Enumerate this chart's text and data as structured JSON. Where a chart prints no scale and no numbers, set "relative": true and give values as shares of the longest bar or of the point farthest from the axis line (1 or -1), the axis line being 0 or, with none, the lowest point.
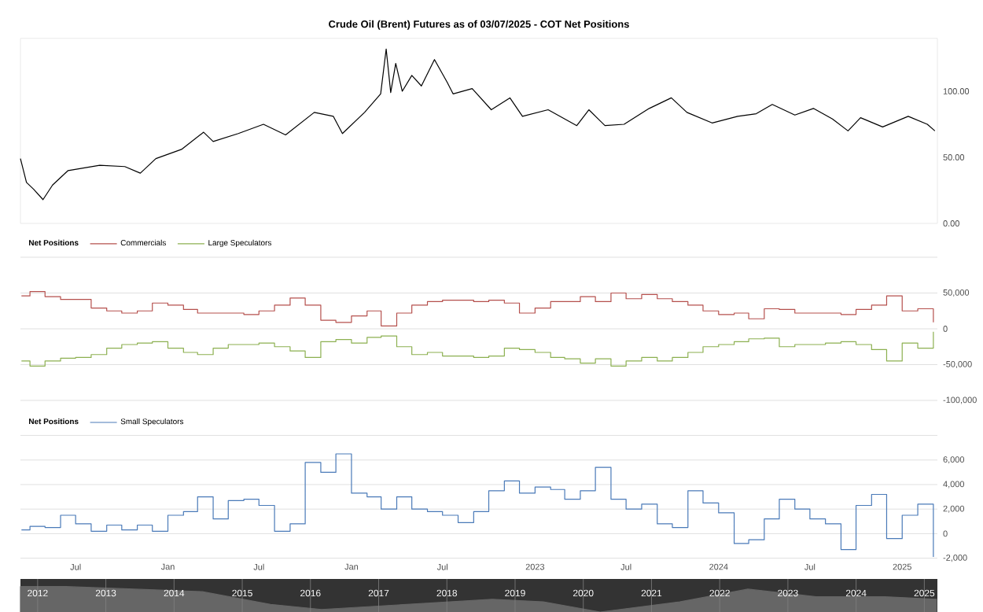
{
  "chart_data": [
    {
      "type": "line",
      "title": "Crude Oil (Brent) Futures as of 03/07/2025 - COT Net Positions",
      "x": [
        "2020-03-13",
        "2020-03-25",
        "2020-04-08",
        "2020-04-27",
        "2020-05-16",
        "2020-06-16",
        "2020-08-18",
        "2020-10-07",
        "2020-11-07",
        "2020-12-08",
        "2021-01-28",
        "2021-03-13",
        "2021-04-01",
        "2021-05-21",
        "2021-07-10",
        "2021-08-23",
        "2021-10-19",
        "2021-11-26",
        "2021-12-14",
        "2022-01-27",
        "2022-02-28",
        "2022-03-11",
        "2022-03-20",
        "2022-03-30",
        "2022-04-12",
        "2022-05-01",
        "2022-05-20",
        "2022-06-15",
        "2022-07-10",
        "2022-07-22",
        "2022-08-29",
        "2022-10-06",
        "2022-11-12",
        "2022-12-07",
        "2023-01-27",
        "2023-03-25",
        "2023-04-18",
        "2023-05-20",
        "2023-06-27",
        "2023-08-16",
        "2023-09-29",
        "2023-10-30",
        "2023-12-19",
        "2024-02-08",
        "2024-03-16",
        "2024-04-17",
        "2024-06-01",
        "2024-07-08",
        "2024-08-15",
        "2024-09-15",
        "2024-10-10",
        "2024-11-23",
        "2025-01-13",
        "2025-02-20",
        "2025-03-07"
      ],
      "series": [
        {
          "color": "#000000",
          "values": [
            49,
            31,
            26,
            18,
            29,
            40,
            44,
            43,
            38,
            49,
            56,
            69,
            62,
            68,
            75,
            67,
            84,
            81,
            68,
            84,
            98,
            132,
            99,
            121,
            100,
            112,
            104,
            124,
            107,
            98,
            102,
            86,
            95,
            81,
            86,
            74,
            86,
            74,
            75,
            87,
            95,
            84,
            76,
            81,
            83,
            90,
            82,
            87,
            79,
            70,
            80,
            73,
            81,
            75,
            70
          ]
        }
      ],
      "xlim": [
        "2020-03-13",
        "2025-03-12"
      ],
      "ylim": [
        0,
        140
      ],
      "yticks": [
        {
          "value": 0,
          "label": "0.00"
        },
        {
          "value": 50,
          "label": "50.00"
        },
        {
          "value": 100,
          "label": "100.00"
        }
      ],
      "tick_labels": "y"
    },
    {
      "type": "step",
      "legend_title": "Net Positions",
      "legend": "top left",
      "grid": "y",
      "x": [
        "2020-03-15",
        "2020-04-01",
        "2020-05-01",
        "2020-06-01",
        "2020-07-01",
        "2020-08-01",
        "2020-09-01",
        "2020-10-01",
        "2020-11-01",
        "2020-12-01",
        "2021-01-01",
        "2021-02-01",
        "2021-03-01",
        "2021-04-01",
        "2021-05-01",
        "2021-06-01",
        "2021-07-01",
        "2021-08-01",
        "2021-09-01",
        "2021-10-01",
        "2021-11-01",
        "2021-12-01",
        "2022-01-01",
        "2022-02-01",
        "2022-03-01",
        "2022-04-01",
        "2022-05-01",
        "2022-06-01",
        "2022-07-01",
        "2022-08-01",
        "2022-09-01",
        "2022-10-01",
        "2022-11-01",
        "2022-12-01",
        "2023-01-01",
        "2023-02-01",
        "2023-03-01",
        "2023-04-01",
        "2023-05-01",
        "2023-06-01",
        "2023-07-01",
        "2023-08-01",
        "2023-09-01",
        "2023-10-01",
        "2023-11-01",
        "2023-12-01",
        "2024-01-01",
        "2024-02-01",
        "2024-03-01",
        "2024-04-01",
        "2024-05-01",
        "2024-06-01",
        "2024-07-01",
        "2024-08-01",
        "2024-09-01",
        "2024-10-01",
        "2024-11-01",
        "2024-12-01",
        "2025-01-01",
        "2025-02-01",
        "2025-03-04"
      ],
      "series": [
        {
          "name": "Commercials",
          "color": "#b5504d",
          "values": [
            46000,
            52000,
            45000,
            41000,
            41000,
            29000,
            25000,
            22000,
            25000,
            36000,
            33000,
            27000,
            22000,
            22000,
            22000,
            20000,
            25000,
            33000,
            43000,
            33000,
            12000,
            9000,
            18000,
            25000,
            4000,
            22000,
            33000,
            38000,
            40000,
            40000,
            38000,
            40000,
            36000,
            22000,
            29000,
            38000,
            38000,
            45000,
            38000,
            50000,
            42000,
            48000,
            42000,
            38000,
            33000,
            25000,
            20000,
            22000,
            14000,
            28000,
            27000,
            22000,
            22000,
            22000,
            20000,
            27000,
            33000,
            46000,
            25000,
            28000,
            9000
          ]
        },
        {
          "name": "Large Speculators",
          "color": "#8cb050",
          "values": [
            -45000,
            -52000,
            -45000,
            -41000,
            -40000,
            -36000,
            -27000,
            -22000,
            -20000,
            -18000,
            -27000,
            -33000,
            -36000,
            -27000,
            -22000,
            -22000,
            -20000,
            -25000,
            -31000,
            -40000,
            -18000,
            -15000,
            -20000,
            -12000,
            -10000,
            -25000,
            -36000,
            -33000,
            -38000,
            -38000,
            -40000,
            -38000,
            -27000,
            -29000,
            -33000,
            -40000,
            -42000,
            -48000,
            -42000,
            -52000,
            -45000,
            -40000,
            -45000,
            -40000,
            -33000,
            -25000,
            -22000,
            -18000,
            -14000,
            -13000,
            -25000,
            -22000,
            -22000,
            -20000,
            -18000,
            -22000,
            -29000,
            -45000,
            -20000,
            -27000,
            -4000
          ]
        }
      ],
      "xlim": [
        "2020-03-13",
        "2025-03-12"
      ],
      "ylim": [
        -100000,
        100000
      ],
      "yticks": [
        {
          "value": -100000,
          "label": "-100,000"
        },
        {
          "value": -50000,
          "label": "-50,000"
        },
        0,
        {
          "value": 50000,
          "label": "50,000"
        },
        {
          "value": 100000,
          "label": null
        }
      ],
      "tick_labels": "y"
    },
    {
      "type": "step",
      "legend_title": "Net Positions",
      "legend": "top left",
      "grid": "y",
      "x": [
        "2020-03-15",
        "2020-04-01",
        "2020-05-01",
        "2020-06-01",
        "2020-07-01",
        "2020-08-01",
        "2020-09-01",
        "2020-10-01",
        "2020-11-01",
        "2020-12-01",
        "2021-01-01",
        "2021-02-01",
        "2021-03-01",
        "2021-04-01",
        "2021-05-01",
        "2021-06-01",
        "2021-07-01",
        "2021-08-01",
        "2021-09-01",
        "2021-10-01",
        "2021-11-01",
        "2021-12-01",
        "2022-01-01",
        "2022-02-01",
        "2022-03-01",
        "2022-04-01",
        "2022-05-01",
        "2022-06-01",
        "2022-07-01",
        "2022-08-01",
        "2022-09-01",
        "2022-10-01",
        "2022-11-01",
        "2022-12-01",
        "2023-01-01",
        "2023-02-01",
        "2023-03-01",
        "2023-04-01",
        "2023-05-01",
        "2023-06-01",
        "2023-07-01",
        "2023-08-01",
        "2023-09-01",
        "2023-10-01",
        "2023-11-01",
        "2023-12-01",
        "2024-01-01",
        "2024-02-01",
        "2024-03-01",
        "2024-04-01",
        "2024-05-01",
        "2024-06-01",
        "2024-07-01",
        "2024-08-01",
        "2024-09-01",
        "2024-10-01",
        "2024-11-01",
        "2024-12-01",
        "2025-01-01",
        "2025-02-01",
        "2025-03-04"
      ],
      "series": [
        {
          "name": "Small Speculators",
          "color": "#4a7ab8",
          "values": [
            300,
            600,
            500,
            1500,
            800,
            200,
            700,
            300,
            700,
            200,
            1500,
            1800,
            3000,
            1200,
            2700,
            2800,
            2300,
            200,
            800,
            5800,
            5000,
            6500,
            3300,
            3000,
            2000,
            3000,
            2000,
            1800,
            1500,
            900,
            1800,
            3500,
            4300,
            3300,
            3800,
            3600,
            2800,
            3500,
            5400,
            2800,
            2000,
            2400,
            800,
            500,
            3500,
            2500,
            1700,
            -800,
            -500,
            1200,
            2800,
            2000,
            1200,
            800,
            -1300,
            2300,
            3200,
            -400,
            1500,
            2400,
            -1900
          ]
        }
      ],
      "xlim": [
        "2020-03-13",
        "2025-03-12"
      ],
      "ylim": [
        -2000,
        8000
      ],
      "yticks": [
        {
          "value": -2000,
          "label": "-2,000"
        },
        0,
        {
          "value": 2000,
          "label": "2,000"
        },
        {
          "value": 4000,
          "label": "4,000"
        },
        {
          "value": 6000,
          "label": "6,000"
        },
        {
          "value": 8000,
          "label": null
        }
      ],
      "xticks": [
        {
          "value": "2020-07-01",
          "label": "Jul"
        },
        {
          "value": "2021-01-01",
          "label": "Jan"
        },
        {
          "value": "2021-07-01",
          "label": "Jul"
        },
        {
          "value": "2022-01-01",
          "label": "Jan"
        },
        {
          "value": "2022-07-01",
          "label": "Jul"
        },
        {
          "value": "2023-01-01",
          "label": "2023"
        },
        {
          "value": "2023-07-01",
          "label": "Jul"
        },
        {
          "value": "2024-01-01",
          "label": "2024"
        },
        {
          "value": "2024-07-01",
          "label": "Jul"
        },
        {
          "value": "2025-01-01",
          "label": "2025"
        }
      ]
    },
    {
      "type": "area",
      "relative": true,
      "grid": "x",
      "x": [
        "2011-10-01",
        "2012-06-01",
        "2013-06-01",
        "2014-06-01",
        "2015-06-01",
        "2016-03-01",
        "2017-06-01",
        "2018-09-01",
        "2019-06-01",
        "2020-04-01",
        "2021-06-01",
        "2022-06-01",
        "2023-06-01",
        "2024-06-01",
        "2025-03-07"
      ],
      "series": [
        {
          "color": "#666666",
          "values": [
            1,
            1,
            0.9,
            0.8,
            0.3,
            0.1,
            0.3,
            0.5,
            0.4,
            0,
            0.4,
            0.9,
            0.6,
            0.6,
            0.5
          ]
        }
      ],
      "xlim": [
        "2011-10-01",
        "2025-03-12"
      ],
      "xticks": [
        {
          "value": "2012-01-01",
          "label": "2012"
        },
        {
          "value": "2013-01-01",
          "label": "2013"
        },
        {
          "value": "2014-01-01",
          "label": "2014"
        },
        {
          "value": "2015-01-01",
          "label": "2015"
        },
        {
          "value": "2016-01-01",
          "label": "2016"
        },
        {
          "value": "2017-01-01",
          "label": "2017"
        },
        {
          "value": "2018-01-01",
          "label": "2018"
        },
        {
          "value": "2019-01-01",
          "label": "2019"
        },
        {
          "value": "2020-01-01",
          "label": "2020"
        },
        {
          "value": "2021-01-01",
          "label": "2021"
        },
        {
          "value": "2022-01-01",
          "label": "2022"
        },
        {
          "value": "2023-01-01",
          "label": "2023"
        },
        {
          "value": "2024-01-01",
          "label": "2024"
        },
        {
          "value": "2025-01-01",
          "label": "2025"
        }
      ],
      "tick_labels": "x"
    }
  ]
}
